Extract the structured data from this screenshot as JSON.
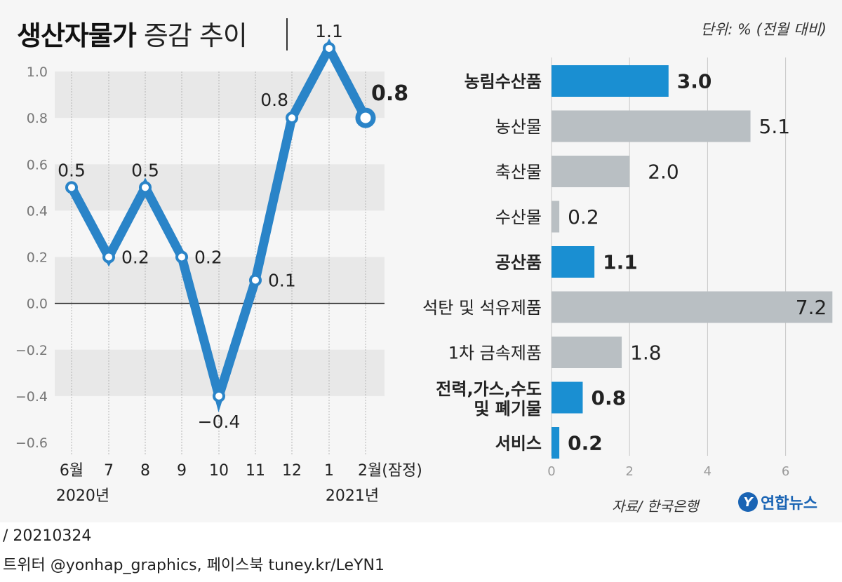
{
  "header": {
    "title_bold": "생산자물가",
    "title_light": "증감 추이",
    "unit": "단위: % (전월 대비)"
  },
  "source": "자료/ 한국은행",
  "logo": {
    "mark": "Y",
    "text": "연합뉴스"
  },
  "footer": {
    "line1": "/ 20210324",
    "line2": "트위터 @yonhap_graphics, 페이스북 tuney.kr/LeYN1"
  },
  "colors": {
    "accent": "#1a8fd2",
    "line": "#2a84c8",
    "gray_bar": "#b9bfc3",
    "band": "#e8e8e8"
  },
  "chart_data": [
    {
      "type": "line",
      "title": "생산자물가 증감 추이",
      "categories": [
        "6월",
        "7",
        "8",
        "9",
        "10",
        "11",
        "12",
        "1",
        "2월(잠정)"
      ],
      "year_labels": [
        "2020년",
        "2021년"
      ],
      "values": [
        0.5,
        0.2,
        0.5,
        0.2,
        -0.4,
        0.1,
        0.8,
        1.1,
        0.8
      ],
      "value_labels": [
        "0.5",
        "0.2",
        "0.5",
        "0.2",
        "−0.4",
        "0.1",
        "0.8",
        "1.1",
        "0.8"
      ],
      "yticks": [
        "1.0",
        "0.8",
        "0.6",
        "0.4",
        "0.2",
        "0.0",
        "−0.2",
        "−0.4",
        "−0.6"
      ],
      "ylim": [
        -0.6,
        1.0
      ]
    },
    {
      "type": "bar",
      "orientation": "horizontal",
      "categories": [
        "농림수산품",
        "농산물",
        "축산물",
        "수산물",
        "공산품",
        "석탄 및 석유제품",
        "1차 금속제품",
        "전력,가스,수도\n및 폐기물",
        "서비스"
      ],
      "values": [
        3.0,
        5.1,
        2.0,
        0.2,
        1.1,
        7.2,
        1.8,
        0.8,
        0.2
      ],
      "value_labels": [
        "3.0",
        "5.1",
        "2.0",
        "0.2",
        "1.1",
        "7.2",
        "1.8",
        "0.8",
        "0.2"
      ],
      "highlight": [
        true,
        false,
        false,
        false,
        true,
        false,
        false,
        true,
        true
      ],
      "xticks": [
        "0",
        "2",
        "4",
        "6"
      ],
      "xlim": [
        0,
        7.2
      ]
    }
  ]
}
